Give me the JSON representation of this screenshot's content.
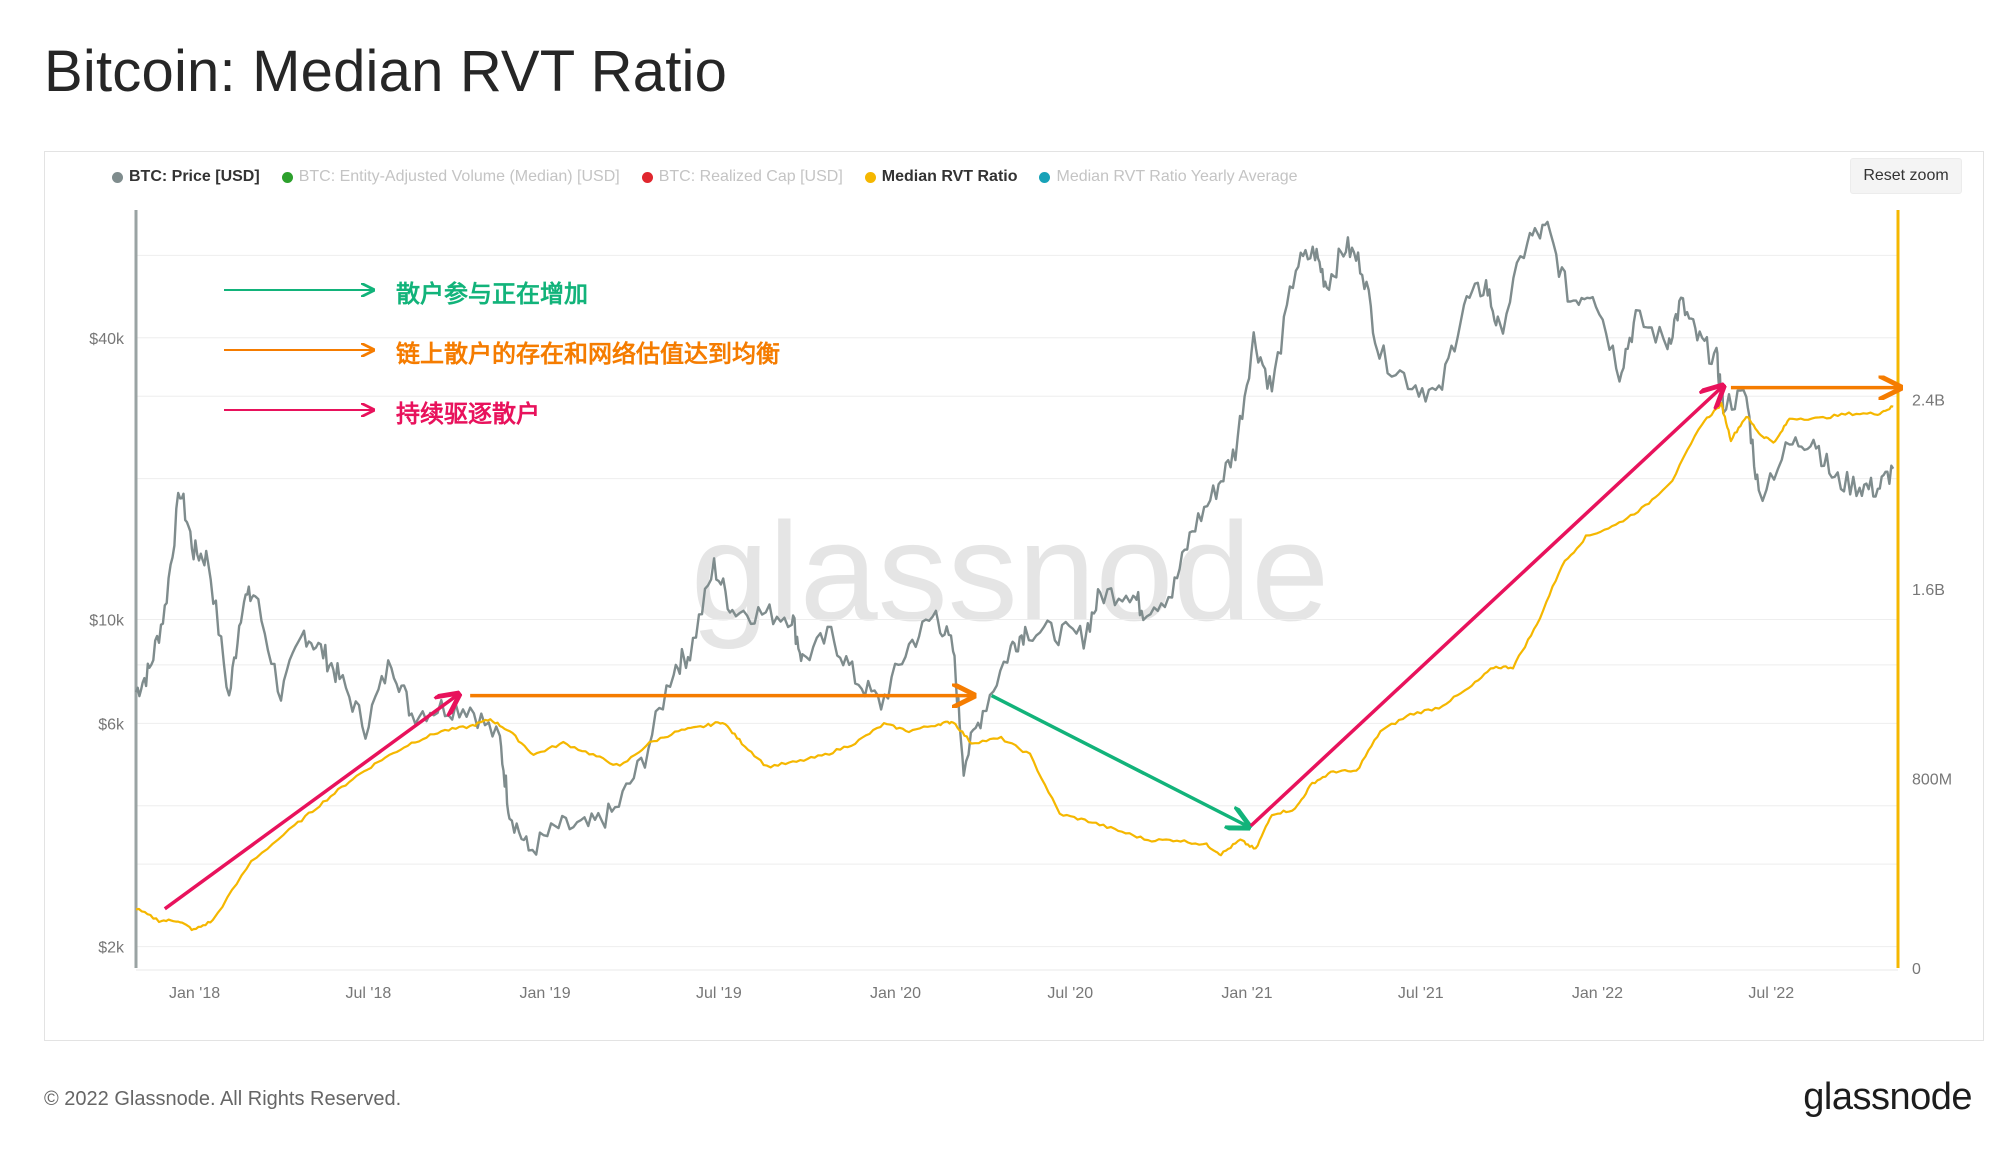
{
  "title": "Bitcoin: Median RVT Ratio",
  "footer": {
    "copyright": "© 2022 Glassnode. All Rights Reserved.",
    "logo": "glassnode"
  },
  "reset_zoom": "Reset zoom",
  "watermark": "glassnode",
  "legend": [
    {
      "label": "BTC: Price [USD]",
      "color": "#7f8c8d",
      "active": true
    },
    {
      "label": "BTC: Entity-Adjusted Volume (Median) [USD]",
      "color": "#2ca02c",
      "active": false
    },
    {
      "label": "BTC: Realized Cap [USD]",
      "color": "#e0262e",
      "active": false
    },
    {
      "label": "Median RVT Ratio",
      "color": "#f5b700",
      "active": true
    },
    {
      "label": "Median RVT Ratio Yearly Average",
      "color": "#17a2b8",
      "active": false
    }
  ],
  "annotations": [
    {
      "text": "散户参与正在增加",
      "color": "#12b37a"
    },
    {
      "text": "链上散户的存在和网络估值达到均衡",
      "color": "#f57c00"
    },
    {
      "text": "持续驱逐散户",
      "color": "#e8125c"
    }
  ],
  "chart_data": {
    "type": "line",
    "title": "Bitcoin: Median RVT Ratio",
    "x_range": [
      "2017-11-01",
      "2022-11-10"
    ],
    "x_ticks": [
      "Jan '18",
      "Jul '18",
      "Jan '19",
      "Jul '19",
      "Jan '20",
      "Jul '20",
      "Jan '21",
      "Jul '21",
      "Jan '22",
      "Jul '22"
    ],
    "y_left": {
      "scale": "log",
      "ticks": [
        "$2k",
        "$6k",
        "$10k",
        "$40k"
      ],
      "tick_values": [
        2000,
        6000,
        10000,
        40000
      ]
    },
    "y_right": {
      "scale": "linear",
      "ticks": [
        "0",
        "800M",
        "1.6B",
        "2.4B"
      ],
      "tick_values": [
        0,
        800000000,
        1600000000,
        2400000000
      ]
    },
    "grid": true,
    "legend_position": "top-left",
    "series": [
      {
        "name": "BTC: Price [USD]",
        "color": "#7f8c8d",
        "axis": "left",
        "points": [
          [
            "2017-11-01",
            7000
          ],
          [
            "2017-11-15",
            7800
          ],
          [
            "2017-12-01",
            10500
          ],
          [
            "2017-12-17",
            19000
          ],
          [
            "2017-12-31",
            14000
          ],
          [
            "2018-01-15",
            13500
          ],
          [
            "2018-02-06",
            6800
          ],
          [
            "2018-02-20",
            11000
          ],
          [
            "2018-03-05",
            11300
          ],
          [
            "2018-04-01",
            6900
          ],
          [
            "2018-04-25",
            9400
          ],
          [
            "2018-05-15",
            8500
          ],
          [
            "2018-06-01",
            7500
          ],
          [
            "2018-06-28",
            5900
          ],
          [
            "2018-07-25",
            8200
          ],
          [
            "2018-08-15",
            6300
          ],
          [
            "2018-09-15",
            6500
          ],
          [
            "2018-10-15",
            6500
          ],
          [
            "2018-11-15",
            5500
          ],
          [
            "2018-11-25",
            3900
          ],
          [
            "2018-12-15",
            3200
          ],
          [
            "2019-01-15",
            3600
          ],
          [
            "2019-02-15",
            3600
          ],
          [
            "2019-03-15",
            3900
          ],
          [
            "2019-04-15",
            5100
          ],
          [
            "2019-05-15",
            7900
          ],
          [
            "2019-06-01",
            8500
          ],
          [
            "2019-06-26",
            13000
          ],
          [
            "2019-07-15",
            10500
          ],
          [
            "2019-08-15",
            10300
          ],
          [
            "2019-09-15",
            10200
          ],
          [
            "2019-09-26",
            8200
          ],
          [
            "2019-10-26",
            9300
          ],
          [
            "2019-11-20",
            7500
          ],
          [
            "2019-12-17",
            6600
          ],
          [
            "2020-01-15",
            8800
          ],
          [
            "2020-02-12",
            10300
          ],
          [
            "2020-03-01",
            8600
          ],
          [
            "2020-03-12",
            4900
          ],
          [
            "2020-04-01",
            6400
          ],
          [
            "2020-04-30",
            8700
          ],
          [
            "2020-05-15",
            9500
          ],
          [
            "2020-06-15",
            9400
          ],
          [
            "2020-07-15",
            9200
          ],
          [
            "2020-08-01",
            11300
          ],
          [
            "2020-09-01",
            11500
          ],
          [
            "2020-09-15",
            10500
          ],
          [
            "2020-10-15",
            11400
          ],
          [
            "2020-11-05",
            15500
          ],
          [
            "2020-11-30",
            19000
          ],
          [
            "2020-12-20",
            23000
          ],
          [
            "2021-01-08",
            40000
          ],
          [
            "2021-01-27",
            31000
          ],
          [
            "2021-02-21",
            57000
          ],
          [
            "2021-03-13",
            61000
          ],
          [
            "2021-03-25",
            52000
          ],
          [
            "2021-04-14",
            63000
          ],
          [
            "2021-05-01",
            57000
          ],
          [
            "2021-05-19",
            37000
          ],
          [
            "2021-06-22",
            32000
          ],
          [
            "2021-07-20",
            30000
          ],
          [
            "2021-08-15",
            47000
          ],
          [
            "2021-09-07",
            52000
          ],
          [
            "2021-09-21",
            41000
          ],
          [
            "2021-10-20",
            65000
          ],
          [
            "2021-11-10",
            68000
          ],
          [
            "2021-12-04",
            48000
          ],
          [
            "2021-12-27",
            51000
          ],
          [
            "2022-01-24",
            34000
          ],
          [
            "2022-02-10",
            44000
          ],
          [
            "2022-03-15",
            39000
          ],
          [
            "2022-03-29",
            47500
          ],
          [
            "2022-04-15",
            40000
          ],
          [
            "2022-05-05",
            36000
          ],
          [
            "2022-05-12",
            29000
          ],
          [
            "2022-06-05",
            30000
          ],
          [
            "2022-06-18",
            18500
          ],
          [
            "2022-07-20",
            23500
          ],
          [
            "2022-08-14",
            24500
          ],
          [
            "2022-09-05",
            19800
          ],
          [
            "2022-10-01",
            19300
          ],
          [
            "2022-10-20",
            19000
          ],
          [
            "2022-11-05",
            21000
          ]
        ]
      },
      {
        "name": "Median RVT Ratio",
        "color": "#f5b700",
        "axis": "right",
        "points": [
          [
            "2017-11-01",
            250000000
          ],
          [
            "2017-11-25",
            200000000
          ],
          [
            "2017-12-15",
            200000000
          ],
          [
            "2017-12-31",
            160000000
          ],
          [
            "2018-01-20",
            200000000
          ],
          [
            "2018-03-01",
            450000000
          ],
          [
            "2018-04-15",
            600000000
          ],
          [
            "2018-05-15",
            700000000
          ],
          [
            "2018-06-15",
            800000000
          ],
          [
            "2018-07-15",
            880000000
          ],
          [
            "2018-08-15",
            950000000
          ],
          [
            "2018-09-15",
            1000000000
          ],
          [
            "2018-10-15",
            1020000000
          ],
          [
            "2018-11-05",
            1050000000
          ],
          [
            "2018-11-25",
            1000000000
          ],
          [
            "2018-12-20",
            900000000
          ],
          [
            "2019-01-20",
            950000000
          ],
          [
            "2019-02-20",
            900000000
          ],
          [
            "2019-03-20",
            850000000
          ],
          [
            "2019-04-20",
            950000000
          ],
          [
            "2019-05-20",
            1000000000
          ],
          [
            "2019-06-15",
            1020000000
          ],
          [
            "2019-07-05",
            1040000000
          ],
          [
            "2019-07-25",
            950000000
          ],
          [
            "2019-08-20",
            850000000
          ],
          [
            "2019-09-20",
            870000000
          ],
          [
            "2019-10-20",
            900000000
          ],
          [
            "2019-11-20",
            950000000
          ],
          [
            "2019-12-20",
            1030000000
          ],
          [
            "2020-01-15",
            1000000000
          ],
          [
            "2020-02-15",
            1030000000
          ],
          [
            "2020-03-01",
            1040000000
          ],
          [
            "2020-03-20",
            950000000
          ],
          [
            "2020-04-20",
            970000000
          ],
          [
            "2020-05-20",
            900000000
          ],
          [
            "2020-06-20",
            650000000
          ],
          [
            "2020-07-20",
            620000000
          ],
          [
            "2020-08-20",
            580000000
          ],
          [
            "2020-09-20",
            540000000
          ],
          [
            "2020-10-20",
            540000000
          ],
          [
            "2020-11-20",
            520000000
          ],
          [
            "2020-12-05",
            480000000
          ],
          [
            "2020-12-25",
            540000000
          ],
          [
            "2021-01-10",
            500000000
          ],
          [
            "2021-01-27",
            650000000
          ],
          [
            "2021-02-20",
            670000000
          ],
          [
            "2021-03-10",
            780000000
          ],
          [
            "2021-04-01",
            830000000
          ],
          [
            "2021-04-25",
            830000000
          ],
          [
            "2021-05-20",
            1000000000
          ],
          [
            "2021-06-20",
            1070000000
          ],
          [
            "2021-07-20",
            1100000000
          ],
          [
            "2021-08-20",
            1180000000
          ],
          [
            "2021-09-15",
            1270000000
          ],
          [
            "2021-10-05",
            1270000000
          ],
          [
            "2021-10-30",
            1450000000
          ],
          [
            "2021-11-25",
            1700000000
          ],
          [
            "2021-12-20",
            1820000000
          ],
          [
            "2022-01-20",
            1870000000
          ],
          [
            "2022-02-20",
            1950000000
          ],
          [
            "2022-03-20",
            2060000000
          ],
          [
            "2022-04-20",
            2300000000
          ],
          [
            "2022-05-10",
            2380000000
          ],
          [
            "2022-05-20",
            2230000000
          ],
          [
            "2022-06-05",
            2330000000
          ],
          [
            "2022-06-20",
            2250000000
          ],
          [
            "2022-07-05",
            2220000000
          ],
          [
            "2022-07-20",
            2320000000
          ],
          [
            "2022-08-20",
            2320000000
          ],
          [
            "2022-09-20",
            2340000000
          ],
          [
            "2022-10-20",
            2340000000
          ],
          [
            "2022-11-05",
            2370000000
          ]
        ]
      }
    ],
    "arrows": [
      {
        "from": [
          "2017-12-01",
          250000000
        ],
        "to": [
          "2018-10-01",
          1150000000
        ],
        "color": "#e8125c"
      },
      {
        "from": [
          "2018-10-15",
          1150000000
        ],
        "to": [
          "2020-03-20",
          1150000000
        ],
        "color": "#f57c00"
      },
      {
        "from": [
          "2020-04-10",
          1150000000
        ],
        "to": [
          "2021-01-01",
          600000000
        ],
        "color": "#12b37a"
      },
      {
        "from": [
          "2021-01-05",
          600000000
        ],
        "to": [
          "2022-05-10",
          2450000000
        ],
        "color": "#e8125c"
      },
      {
        "from": [
          "2022-05-20",
          2450000000
        ],
        "to": [
          "2022-11-10",
          2450000000
        ],
        "color": "#f57c00"
      }
    ]
  }
}
